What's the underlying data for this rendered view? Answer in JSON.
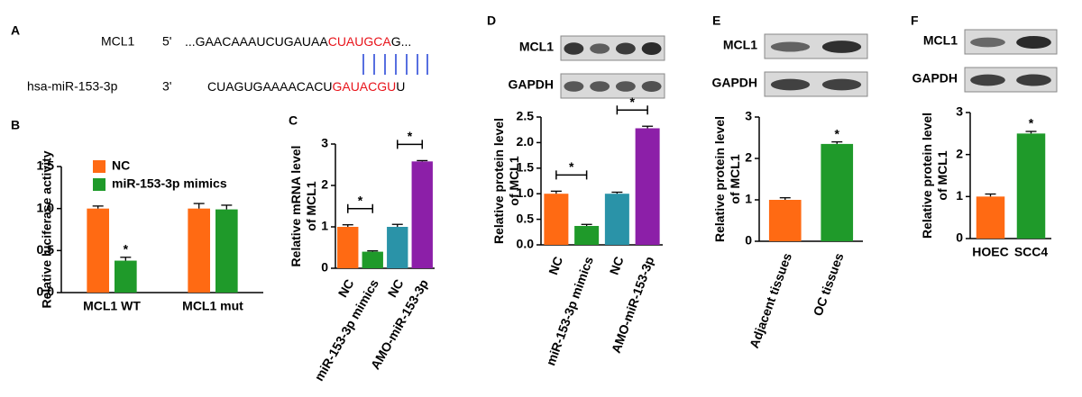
{
  "alignment": {
    "panel": "A",
    "row1": {
      "name": "MCL1",
      "end": "5'",
      "seq": "...GAACAAAUCUGAUAA",
      "site": "CUAUGCA",
      "tail": "G..."
    },
    "row2": {
      "name": "hsa-miR-153-3p",
      "end": "3'",
      "seq": "CUAGUGAAAACACU",
      "site": "GAUACGU",
      "tail": "U"
    }
  },
  "chart_data": [
    {
      "type": "grouped-bar",
      "panel": "B",
      "ylabel": [
        "Relative luciferase activity"
      ],
      "categories": [
        "MCL1 WT",
        "MCL1 mut"
      ],
      "series": [
        {
          "name": "NC",
          "color": "#ff6a13",
          "values": [
            1.0,
            1.0
          ],
          "errors": [
            0.03,
            0.06
          ]
        },
        {
          "name": "miR-153-3p mimics",
          "color": "#1f9a2a",
          "values": [
            0.38,
            0.99
          ],
          "errors": [
            0.04,
            0.05
          ]
        }
      ],
      "ylim": [
        0,
        1.5
      ],
      "yticks": [
        {
          "value": 0,
          "label": "0.0"
        },
        {
          "value": 0.5,
          "label": "0.5"
        },
        {
          "value": 1,
          "label": "1.0"
        },
        {
          "value": 1.5,
          "label": "1.5"
        }
      ],
      "annotations": [
        {
          "series": 1,
          "category": 0,
          "label": "*"
        }
      ]
    },
    {
      "type": "bar",
      "panel": "C",
      "ylabel": [
        "Relative mRNA level",
        "of MCL1"
      ],
      "categories": [
        "NC",
        "miR-153-3p mimics",
        "NC",
        "AMO-miR-153-3p"
      ],
      "values": [
        1.0,
        0.4,
        1.0,
        2.58
      ],
      "errors": [
        0.05,
        0.02,
        0.06,
        0.02
      ],
      "colors": [
        "#ff6a13",
        "#1f9a2a",
        "#2a93a8",
        "#8c1fa8"
      ],
      "ylim": [
        0,
        3
      ],
      "yticks": [
        0,
        1,
        2,
        3
      ],
      "significance": [
        {
          "categories": [
            0,
            1
          ],
          "label": "*"
        },
        {
          "categories": [
            2,
            3
          ],
          "label": "*"
        }
      ]
    },
    {
      "type": "bar",
      "panel": "D",
      "ylabel": [
        "Relative protein level",
        "of MCL1"
      ],
      "blots": [
        "MCL1",
        "GAPDH"
      ],
      "categories": [
        "NC",
        "miR-153-3p mimics",
        "NC",
        "AMO-miR-153-3p"
      ],
      "values": [
        1.0,
        0.37,
        1.0,
        2.28
      ],
      "errors": [
        0.05,
        0.03,
        0.03,
        0.04
      ],
      "colors": [
        "#ff6a13",
        "#1f9a2a",
        "#2a93a8",
        "#8c1fa8"
      ],
      "ylim": [
        0,
        2.5
      ],
      "yticks": [
        {
          "value": 0,
          "label": "0.0"
        },
        {
          "value": 0.5,
          "label": "0.5"
        },
        {
          "value": 1,
          "label": "1.0"
        },
        {
          "value": 1.5,
          "label": "1.5"
        },
        {
          "value": 2,
          "label": "2.0"
        },
        {
          "value": 2.5,
          "label": "2.5"
        }
      ],
      "significance": [
        {
          "categories": [
            0,
            1
          ],
          "label": "*"
        },
        {
          "categories": [
            2,
            3
          ],
          "label": "*"
        }
      ]
    },
    {
      "type": "bar",
      "panel": "E",
      "ylabel": [
        "Relative protein level",
        "of MCL1"
      ],
      "blots": [
        "MCL1",
        "GAPDH"
      ],
      "categories": [
        "Adjacent tissues",
        "OC tissues"
      ],
      "values": [
        1.0,
        2.35
      ],
      "errors": [
        0.05,
        0.05
      ],
      "colors": [
        "#ff6a13",
        "#1f9a2a"
      ],
      "ylim": [
        0,
        3
      ],
      "yticks": [
        0,
        1,
        2,
        3
      ],
      "annotations": [
        {
          "category": 1,
          "label": "*"
        }
      ]
    },
    {
      "type": "bar",
      "panel": "F",
      "ylabel": [
        "Relative protein level",
        "of MCL1"
      ],
      "blots": [
        "MCL1",
        "GAPDH"
      ],
      "categories": [
        "HOEC",
        "SCC4"
      ],
      "values": [
        1.0,
        2.5
      ],
      "errors": [
        0.06,
        0.05
      ],
      "colors": [
        "#ff6a13",
        "#1f9a2a"
      ],
      "ylim": [
        0,
        3
      ],
      "yticks": [
        0,
        1,
        2,
        3
      ],
      "annotations": [
        {
          "category": 1,
          "label": "*"
        }
      ]
    }
  ]
}
